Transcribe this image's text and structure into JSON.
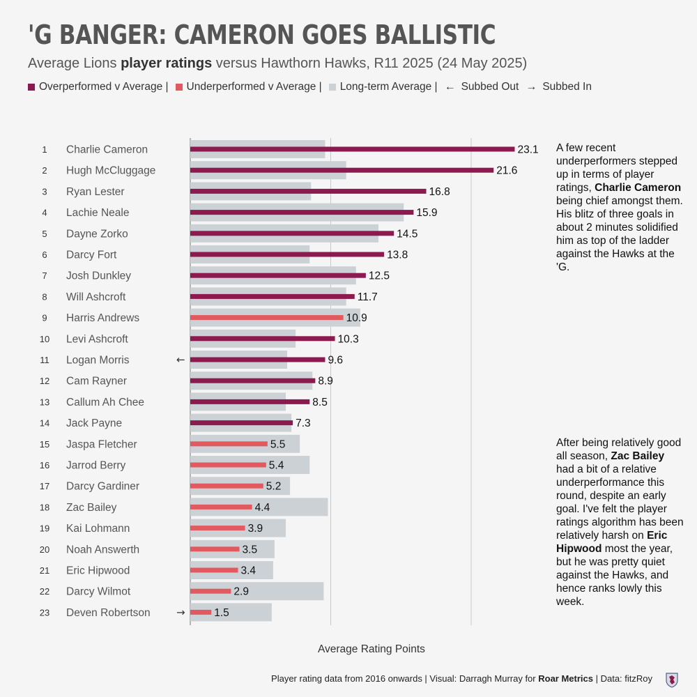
{
  "title": "'G BANGER: CAMERON GOES BALLISTIC",
  "subtitle": {
    "pre": "Average Lions ",
    "bold": "player ratings",
    "post": " versus Hawthorn Hawks, R11 2025 (24 May 2025)"
  },
  "legend": {
    "over": "Overperformed v Average |",
    "under": "Underperformed v Average |",
    "avg": "Long-term Average |",
    "out_arrow": "←",
    "out": "Subbed Out",
    "in_arrow": "→",
    "in": "Subbed In"
  },
  "colors": {
    "over": "#8c1a4f",
    "under": "#e05a5f",
    "avg": "#ccd1d6",
    "title": "#555555"
  },
  "annotation1": {
    "t1": "A few recent underperformers stepped up in terms of player ratings, ",
    "b1": "Charlie Cameron",
    "t2": " being chief amongst them. His blitz of three goals in about 2 minutes solidified him as top of the ladder against the Hawks at the 'G."
  },
  "annotation2": {
    "t1": "After being relatively good all season, ",
    "b1": "Zac Bailey",
    "t2": " had a bit of a relative underperformance this round, despite an early goal. I've felt the player ratings algorithm has been relatively harsh on ",
    "b2": "Eric Hipwood",
    "t3": " most the year, but he was pretty quiet against the Hawks, and hence ranks lowly this week."
  },
  "footer": {
    "pre": "Player rating data from 2016 onwards | Visual: Darragh Murray for ",
    "bold": "Roar Metrics",
    "post": " | Data: fitzRoy"
  },
  "chart_data": {
    "type": "bar",
    "orientation": "horizontal",
    "xlabel": "Average Rating Points",
    "xlim": [
      0,
      25
    ],
    "gridlines": [
      0,
      10,
      20
    ],
    "players": [
      {
        "rank": "1",
        "name": "Charlie Cameron",
        "rating": 23.1,
        "avg": 9.6,
        "status": "over",
        "sub": ""
      },
      {
        "rank": "2",
        "name": "Hugh McCluggage",
        "rating": 21.6,
        "avg": 11.1,
        "status": "over",
        "sub": ""
      },
      {
        "rank": "3",
        "name": "Ryan Lester",
        "rating": 16.8,
        "avg": 8.6,
        "status": "over",
        "sub": ""
      },
      {
        "rank": "4",
        "name": "Lachie Neale",
        "rating": 15.9,
        "avg": 15.2,
        "status": "over",
        "sub": ""
      },
      {
        "rank": "5",
        "name": "Dayne Zorko",
        "rating": 14.5,
        "avg": 13.4,
        "status": "over",
        "sub": ""
      },
      {
        "rank": "6",
        "name": "Darcy Fort",
        "rating": 13.8,
        "avg": 8.5,
        "status": "over",
        "sub": ""
      },
      {
        "rank": "7",
        "name": "Josh Dunkley",
        "rating": 12.5,
        "avg": 11.8,
        "status": "over",
        "sub": ""
      },
      {
        "rank": "8",
        "name": "Will Ashcroft",
        "rating": 11.7,
        "avg": 11.1,
        "status": "over",
        "sub": ""
      },
      {
        "rank": "9",
        "name": "Harris Andrews",
        "rating": 10.9,
        "avg": 12.1,
        "status": "under",
        "sub": ""
      },
      {
        "rank": "10",
        "name": "Levi Ashcroft",
        "rating": 10.3,
        "avg": 7.5,
        "status": "over",
        "sub": ""
      },
      {
        "rank": "11",
        "name": "Logan Morris",
        "rating": 9.6,
        "avg": 6.9,
        "status": "over",
        "sub": "out"
      },
      {
        "rank": "12",
        "name": "Cam Rayner",
        "rating": 8.9,
        "avg": 8.7,
        "status": "over",
        "sub": ""
      },
      {
        "rank": "13",
        "name": "Callum Ah Chee",
        "rating": 8.5,
        "avg": 6.8,
        "status": "over",
        "sub": ""
      },
      {
        "rank": "14",
        "name": "Jack Payne",
        "rating": 7.3,
        "avg": 7.2,
        "status": "over",
        "sub": ""
      },
      {
        "rank": "15",
        "name": "Jaspa Fletcher",
        "rating": 5.5,
        "avg": 7.8,
        "status": "under",
        "sub": ""
      },
      {
        "rank": "16",
        "name": "Jarrod Berry",
        "rating": 5.4,
        "avg": 8.5,
        "status": "under",
        "sub": ""
      },
      {
        "rank": "17",
        "name": "Darcy Gardiner",
        "rating": 5.2,
        "avg": 7.1,
        "status": "under",
        "sub": ""
      },
      {
        "rank": "18",
        "name": "Zac Bailey",
        "rating": 4.4,
        "avg": 9.8,
        "status": "under",
        "sub": ""
      },
      {
        "rank": "19",
        "name": "Kai Lohmann",
        "rating": 3.9,
        "avg": 6.8,
        "status": "under",
        "sub": ""
      },
      {
        "rank": "20",
        "name": "Noah Answerth",
        "rating": 3.5,
        "avg": 6.0,
        "status": "under",
        "sub": ""
      },
      {
        "rank": "21",
        "name": "Eric Hipwood",
        "rating": 3.4,
        "avg": 5.9,
        "status": "under",
        "sub": ""
      },
      {
        "rank": "22",
        "name": "Darcy Wilmot",
        "rating": 2.9,
        "avg": 9.5,
        "status": "under",
        "sub": ""
      },
      {
        "rank": "23",
        "name": "Deven Robertson",
        "rating": 1.5,
        "avg": 5.8,
        "status": "under",
        "sub": "in"
      }
    ]
  }
}
